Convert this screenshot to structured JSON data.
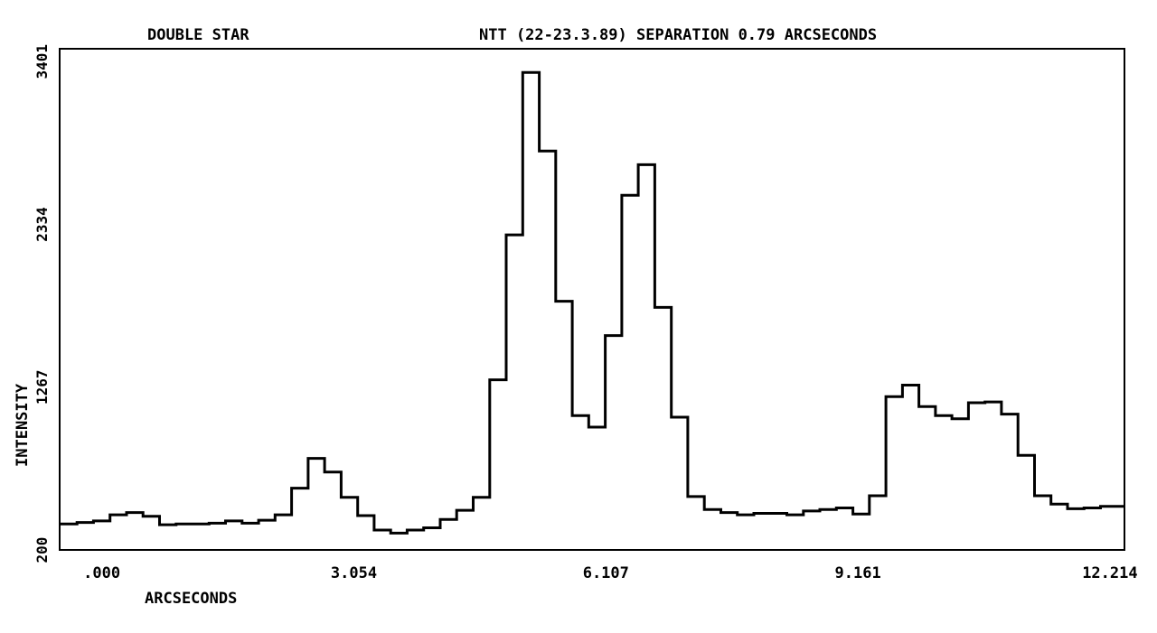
{
  "chart_data": {
    "type": "line",
    "style": "step",
    "title_left": "DOUBLE STAR",
    "title_right": "NTT (22-23.3.89) SEPARATION 0.79 ARCSECONDS",
    "xlabel": "ARCSECONDS",
    "ylabel": "INTENSITY",
    "xlim": [
      -0.51,
      12.39
    ],
    "ylim": [
      200,
      3485
    ],
    "xticks": [
      0.0,
      3.054,
      6.107,
      9.161,
      12.214
    ],
    "xtick_labels": [
      ".000",
      "3.054",
      "6.107",
      "9.161",
      "12.214"
    ],
    "yticks": [
      200,
      1267,
      2334,
      3401
    ],
    "ytick_labels": [
      "200",
      "1267",
      "2334",
      "3401"
    ],
    "grid": false,
    "series": [
      {
        "x": [
          -0.51,
          -0.3,
          -0.1,
          0.1,
          0.3,
          0.5,
          0.7,
          0.9,
          1.1,
          1.3,
          1.5,
          1.7,
          1.9,
          2.1,
          2.3,
          2.5,
          2.7,
          2.9,
          3.1,
          3.3,
          3.5,
          3.7,
          3.9,
          4.1,
          4.3,
          4.5,
          4.7,
          4.9,
          5.1,
          5.3,
          5.5,
          5.7,
          5.9,
          6.1,
          6.3,
          6.5,
          6.7,
          6.9,
          7.1,
          7.3,
          7.5,
          7.7,
          7.9,
          8.1,
          8.3,
          8.5,
          8.7,
          8.9,
          9.1,
          9.3,
          9.5,
          9.7,
          9.9,
          10.1,
          10.3,
          10.5,
          10.7,
          10.9,
          11.1,
          11.3,
          11.5,
          11.7,
          11.9,
          12.1
        ],
        "y": [
          370,
          380,
          390,
          430,
          445,
          420,
          365,
          370,
          370,
          375,
          390,
          375,
          395,
          430,
          605,
          800,
          710,
          545,
          425,
          330,
          310,
          330,
          345,
          400,
          460,
          545,
          1315,
          2265,
          3330,
          2815,
          1830,
          1080,
          1005,
          1605,
          2525,
          2725,
          1790,
          1070,
          550,
          465,
          445,
          430,
          440,
          440,
          430,
          455,
          465,
          475,
          435,
          555,
          1205,
          1280,
          1140,
          1080,
          1060,
          1165,
          1170,
          1090,
          820,
          555,
          500,
          470,
          475,
          485
        ]
      }
    ]
  }
}
